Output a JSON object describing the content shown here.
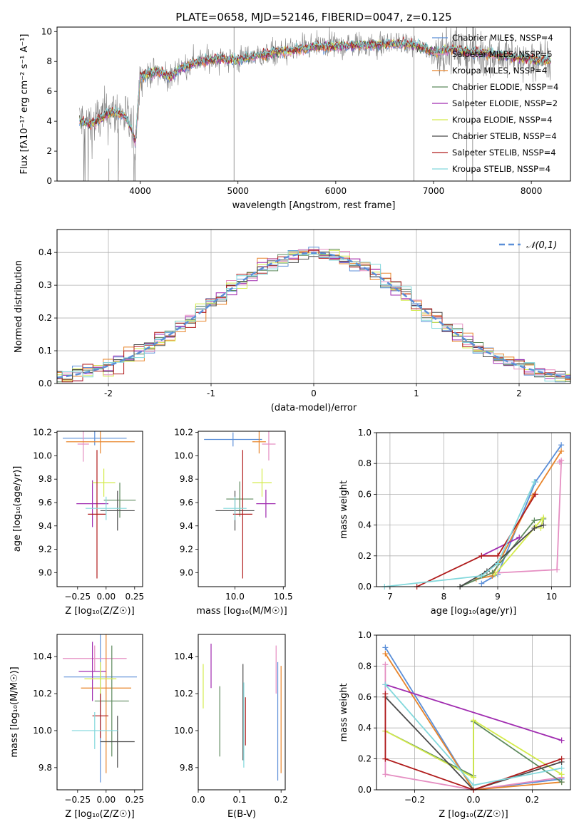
{
  "figure": {
    "title": "PLATE=0658, MJD=52146, FIBERID=0047, z=0.125"
  },
  "colors": {
    "Chabrier MILES": "#5b8fd8",
    "Salpeter MILES": "#e58ec2",
    "Kroupa MILES": "#e8842a",
    "Chabrier ELODIE": "#5e8a5e",
    "Salpeter ELODIE": "#a02cb0",
    "Kroupa ELODIE": "#d4eb4a",
    "Chabrier STELIB": "#4a4a4a",
    "Salpeter STELIB": "#b01c1c",
    "Kroupa STELIB": "#82d8dc",
    "data": "#808080",
    "normal": "#5b8fd8"
  },
  "chart_data": [
    {
      "id": "spectrum",
      "type": "line",
      "xlabel": "wavelength [Angstrom, rest frame]",
      "ylabel": "Flux [fλ10⁻¹⁷ erg cm⁻² s⁻¹ A⁻¹]",
      "xlim": [
        3150,
        8400
      ],
      "ylim": [
        0,
        10.3
      ],
      "xticks": [
        4000,
        5000,
        6000,
        7000,
        8000
      ],
      "yticks": [
        0,
        2,
        4,
        6,
        8,
        10
      ],
      "grid": false,
      "legend_position": "right",
      "continuum": {
        "x": [
          3380,
          3500,
          3600,
          3700,
          3800,
          3850,
          3900,
          3950,
          4000,
          4100,
          4200,
          4300,
          4400,
          4600,
          4800,
          5000,
          5200,
          5400,
          5600,
          5800,
          6000,
          6200,
          6400,
          6600,
          6800,
          7000,
          7200,
          7400,
          7600,
          7800,
          8000,
          8200
        ],
        "y": [
          4.0,
          3.8,
          4.2,
          4.6,
          4.5,
          4.3,
          3.6,
          2.6,
          7.0,
          7.2,
          7.3,
          6.9,
          7.5,
          8.0,
          8.2,
          8.1,
          8.4,
          8.6,
          8.8,
          9.0,
          9.0,
          9.1,
          9.1,
          9.2,
          9.1,
          8.6,
          8.8,
          8.6,
          8.5,
          8.3,
          8.1,
          8.0
        ]
      },
      "legend": [
        {
          "label": "Chabrier MILES, NSSP=4"
        },
        {
          "label": "Salpeter MILES, NSSP=5"
        },
        {
          "label": "Kroupa MILES, NSSP=4"
        },
        {
          "label": "Chabrier ELODIE, NSSP=4"
        },
        {
          "label": "Salpeter ELODIE, NSSP=2"
        },
        {
          "label": "Kroupa ELODIE, NSSP=4"
        },
        {
          "label": "Chabrier STELIB, NSSP=4"
        },
        {
          "label": "Salpeter STELIB, NSSP=4"
        },
        {
          "label": "Kroupa STELIB, NSSP=4"
        }
      ]
    },
    {
      "id": "residuals",
      "type": "line",
      "xlabel": "(data-model)/error",
      "ylabel": "Normed distribution",
      "xlim": [
        -2.5,
        2.5
      ],
      "ylim": [
        0,
        0.47
      ],
      "xticks": [
        -2,
        -1,
        0,
        1,
        2
      ],
      "yticks": [
        0.0,
        0.1,
        0.2,
        0.3,
        0.4
      ],
      "grid": true,
      "legend": "𝒩(0,1)",
      "legend_position": "top-right",
      "normal_curve": {
        "mean": 0,
        "sigma": 1
      }
    },
    {
      "id": "age_vs_Z",
      "type": "scatter",
      "xlabel": "Z [log₁₀(Z/Z☉)]",
      "ylabel": "age [log₁₀(age/yr)]",
      "xlim": [
        -0.43,
        0.32
      ],
      "ylim": [
        8.88,
        10.21
      ],
      "xticks": [
        -0.25,
        0.0,
        0.25
      ],
      "xticklabels": [
        "−0.25",
        "0.00",
        "0.25"
      ],
      "yticks": [
        9.0,
        9.2,
        9.4,
        9.6,
        9.8,
        10.0,
        10.2
      ],
      "grid": false,
      "points": [
        {
          "series": "Chabrier MILES",
          "x": -0.1,
          "xerr": 0.28,
          "y": 10.15,
          "yerr": 0.06
        },
        {
          "series": "Salpeter MILES",
          "x": -0.2,
          "xerr": 0.05,
          "y": 10.1,
          "yerr": 0.15
        },
        {
          "series": "Kroupa MILES",
          "x": -0.05,
          "xerr": 0.3,
          "y": 10.12,
          "yerr": 0.1
        },
        {
          "series": "Chabrier ELODIE",
          "x": 0.12,
          "xerr": 0.14,
          "y": 9.62,
          "yerr": 0.15
        },
        {
          "series": "Salpeter ELODIE",
          "x": -0.12,
          "xerr": 0.14,
          "y": 9.59,
          "yerr": 0.2
        },
        {
          "series": "Kroupa ELODIE",
          "x": -0.02,
          "xerr": 0.1,
          "y": 9.77,
          "yerr": 0.12
        },
        {
          "series": "Chabrier STELIB",
          "x": 0.1,
          "xerr": 0.15,
          "y": 9.53,
          "yerr": 0.17
        },
        {
          "series": "Salpeter STELIB",
          "x": -0.08,
          "xerr": 0.08,
          "y": 9.5,
          "yerr": 0.55
        },
        {
          "series": "Kroupa STELIB",
          "x": 0.0,
          "xerr": 0.18,
          "y": 9.55,
          "yerr": 0.1
        }
      ]
    },
    {
      "id": "age_vs_mass",
      "type": "scatter",
      "xlabel": "mass [log₁₀(M/M☉)]",
      "xlim": [
        9.62,
        10.52
      ],
      "ylim": [
        8.88,
        10.21
      ],
      "xticks": [
        10.0,
        10.5
      ],
      "xticklabels": [
        "10.0",
        "10.5"
      ],
      "yticks": [
        9.0,
        9.2,
        9.4,
        9.6,
        9.8,
        10.0,
        10.2
      ],
      "grid": false,
      "points": [
        {
          "series": "Chabrier MILES",
          "x": 9.98,
          "xerr": 0.3,
          "y": 10.14,
          "yerr": 0.06
        },
        {
          "series": "Salpeter MILES",
          "x": 10.35,
          "xerr": 0.07,
          "y": 10.1,
          "yerr": 0.14
        },
        {
          "series": "Kroupa MILES",
          "x": 10.25,
          "xerr": 0.07,
          "y": 10.12,
          "yerr": 0.1
        },
        {
          "series": "Chabrier ELODIE",
          "x": 10.05,
          "xerr": 0.14,
          "y": 9.63,
          "yerr": 0.15
        },
        {
          "series": "Salpeter ELODIE",
          "x": 10.32,
          "xerr": 0.1,
          "y": 9.59,
          "yerr": 0.12
        },
        {
          "series": "Kroupa ELODIE",
          "x": 10.28,
          "xerr": 0.1,
          "y": 9.77,
          "yerr": 0.12
        },
        {
          "series": "Chabrier STELIB",
          "x": 10.0,
          "xerr": 0.2,
          "y": 9.53,
          "yerr": 0.17
        },
        {
          "series": "Salpeter STELIB",
          "x": 10.08,
          "xerr": 0.1,
          "y": 9.5,
          "yerr": 0.55
        },
        {
          "series": "Kroupa STELIB",
          "x": 10.0,
          "xerr": 0.12,
          "y": 9.55,
          "yerr": 0.1
        }
      ]
    },
    {
      "id": "weight_vs_age",
      "type": "line",
      "xlabel": "age  [log₁₀(age/yr)]",
      "ylabel": "mass weight",
      "xlim": [
        6.75,
        10.35
      ],
      "ylim": [
        0,
        1.0
      ],
      "xticks": [
        7,
        8,
        9,
        10
      ],
      "yticks": [
        0.0,
        0.2,
        0.4,
        0.6,
        0.8,
        1.0
      ],
      "grid": true,
      "series": [
        {
          "name": "Chabrier MILES",
          "x": [
            8.7,
            9.0,
            9.7,
            10.18
          ],
          "y": [
            0.02,
            0.08,
            0.68,
            0.92
          ]
        },
        {
          "name": "Salpeter MILES",
          "x": [
            9.0,
            10.1,
            10.18,
            10.15
          ],
          "y": [
            0.09,
            0.11,
            0.82,
            0.81
          ]
        },
        {
          "name": "Kroupa MILES",
          "x": [
            8.6,
            8.9,
            9.65,
            10.18
          ],
          "y": [
            0.05,
            0.07,
            0.59,
            0.88
          ]
        },
        {
          "name": "Chabrier ELODIE",
          "x": [
            8.3,
            8.9,
            9.68,
            9.85
          ],
          "y": [
            0.0,
            0.09,
            0.43,
            0.44
          ]
        },
        {
          "name": "Salpeter ELODIE",
          "x": [
            8.7,
            9.4
          ],
          "y": [
            0.2,
            0.32
          ]
        },
        {
          "name": "Kroupa ELODIE",
          "x": [
            8.95,
            9.7,
            9.85,
            9.8
          ],
          "y": [
            0.08,
            0.39,
            0.45,
            0.38
          ]
        },
        {
          "name": "Chabrier STELIB",
          "x": [
            8.3,
            8.8,
            9.68,
            9.85
          ],
          "y": [
            0.0,
            0.1,
            0.38,
            0.4
          ]
        },
        {
          "name": "Salpeter STELIB",
          "x": [
            7.5,
            8.7,
            9.0,
            9.7
          ],
          "y": [
            0.0,
            0.2,
            0.2,
            0.6
          ]
        },
        {
          "name": "Kroupa STELIB",
          "x": [
            6.9,
            8.7,
            9.0,
            9.68
          ],
          "y": [
            0.0,
            0.07,
            0.15,
            0.68
          ]
        }
      ]
    },
    {
      "id": "mass_vs_Z",
      "type": "scatter",
      "xlabel": "Z [log₁₀(Z/Z☉)]",
      "ylabel": "mass [log₁₀(M/M☉)]",
      "xlim": [
        -0.43,
        0.32
      ],
      "ylim": [
        9.68,
        10.52
      ],
      "xticks": [
        -0.25,
        0.0,
        0.25
      ],
      "xticklabels": [
        "−0.25",
        "0.00",
        "0.25"
      ],
      "yticks": [
        9.8,
        10.0,
        10.2,
        10.4
      ],
      "grid": false,
      "points": [
        {
          "series": "Chabrier MILES",
          "x": -0.05,
          "xerr": 0.32,
          "y": 10.29,
          "yerr": 0.57
        },
        {
          "series": "Salpeter MILES",
          "x": -0.1,
          "xerr": 0.28,
          "y": 10.39,
          "yerr": 0.07
        },
        {
          "series": "Kroupa MILES",
          "x": 0.0,
          "xerr": 0.22,
          "y": 10.23,
          "yerr": 0.46
        },
        {
          "series": "Chabrier ELODIE",
          "x": 0.05,
          "xerr": 0.15,
          "y": 10.16,
          "yerr": 0.3
        },
        {
          "series": "Salpeter ELODIE",
          "x": -0.12,
          "xerr": 0.12,
          "y": 10.32,
          "yerr": 0.16
        },
        {
          "series": "Kroupa ELODIE",
          "x": -0.05,
          "xerr": 0.14,
          "y": 10.28,
          "yerr": 0.09
        },
        {
          "series": "Chabrier STELIB",
          "x": 0.1,
          "xerr": 0.15,
          "y": 9.94,
          "yerr": 0.14
        },
        {
          "series": "Salpeter STELIB",
          "x": -0.05,
          "xerr": 0.07,
          "y": 10.08,
          "yerr": 0.12
        },
        {
          "series": "Kroupa STELIB",
          "x": -0.1,
          "xerr": 0.2,
          "y": 10.0,
          "yerr": 0.1
        }
      ]
    },
    {
      "id": "mass_vs_ebv",
      "type": "scatter",
      "xlabel": "E(B-V)",
      "xlim": [
        0.0,
        0.21
      ],
      "ylim": [
        9.68,
        10.52
      ],
      "xticks": [
        0.0,
        0.1,
        0.2
      ],
      "xticklabels": [
        "0.0",
        "0.1",
        "0.2"
      ],
      "yticks": [
        9.8,
        10.0,
        10.2,
        10.4
      ],
      "grid": false,
      "points": [
        {
          "series": "Chabrier MILES",
          "x": 0.192,
          "y": 10.05,
          "yerr": 0.32
        },
        {
          "series": "Salpeter MILES",
          "x": 0.188,
          "y": 10.33,
          "yerr": 0.13
        },
        {
          "series": "Kroupa MILES",
          "x": 0.2,
          "y": 10.06,
          "yerr": 0.29
        },
        {
          "series": "Chabrier ELODIE",
          "x": 0.052,
          "y": 10.05,
          "yerr": 0.19
        },
        {
          "series": "Salpeter ELODIE",
          "x": 0.031,
          "y": 10.35,
          "yerr": 0.12
        },
        {
          "series": "Kroupa ELODIE",
          "x": 0.012,
          "y": 10.24,
          "yerr": 0.12
        },
        {
          "series": "Chabrier STELIB",
          "x": 0.108,
          "y": 10.1,
          "yerr": 0.26
        },
        {
          "series": "Salpeter STELIB",
          "x": 0.114,
          "y": 10.05,
          "yerr": 0.13
        },
        {
          "series": "Kroupa STELIB",
          "x": 0.11,
          "y": 10.03,
          "yerr": 0.23
        }
      ]
    },
    {
      "id": "weight_vs_Z",
      "type": "line",
      "xlabel": "Z [log₁₀(Z/Z☉)]",
      "ylabel": "mass weight",
      "xlim": [
        -0.33,
        0.33
      ],
      "ylim": [
        0,
        1.0
      ],
      "xticks": [
        -0.2,
        0.0,
        0.2
      ],
      "xticklabels": [
        "−0.2",
        "0.0",
        "0.2"
      ],
      "yticks": [
        0.0,
        0.2,
        0.4,
        0.6,
        0.8,
        1.0
      ],
      "grid": true,
      "series": [
        {
          "name": "Chabrier MILES",
          "x": [
            -0.3,
            0.0,
            0.3
          ],
          "y": [
            0.92,
            0.0,
            0.07
          ]
        },
        {
          "name": "Salpeter MILES",
          "x": [
            -0.3,
            -0.3,
            0.0,
            0.3
          ],
          "y": [
            0.81,
            0.1,
            0.0,
            0.08
          ]
        },
        {
          "name": "Kroupa MILES",
          "x": [
            -0.3,
            0.0,
            0.3
          ],
          "y": [
            0.88,
            0.0,
            0.05
          ]
        },
        {
          "name": "Chabrier ELODIE",
          "x": [
            -0.3,
            0.0,
            0.0,
            0.3
          ],
          "y": [
            0.38,
            0.09,
            0.44,
            0.05
          ]
        },
        {
          "name": "Salpeter ELODIE",
          "x": [
            -0.3,
            0.3
          ],
          "y": [
            0.68,
            0.32
          ]
        },
        {
          "name": "Kroupa ELODIE",
          "x": [
            -0.3,
            0.0,
            0.0,
            0.3
          ],
          "y": [
            0.38,
            0.08,
            0.45,
            0.1
          ]
        },
        {
          "name": "Chabrier STELIB",
          "x": [
            -0.3,
            0.0,
            0.3
          ],
          "y": [
            0.6,
            0.0,
            0.18
          ]
        },
        {
          "name": "Salpeter STELIB",
          "x": [
            -0.3,
            -0.3,
            0.0,
            0.3
          ],
          "y": [
            0.62,
            0.2,
            0.0,
            0.2
          ]
        },
        {
          "name": "Kroupa STELIB",
          "x": [
            -0.3,
            0.0,
            0.3
          ],
          "y": [
            0.68,
            0.03,
            0.14
          ]
        }
      ]
    }
  ]
}
